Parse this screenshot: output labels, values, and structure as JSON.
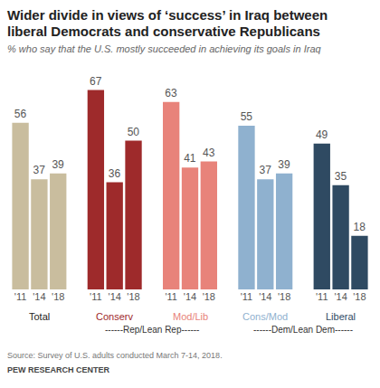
{
  "chart_data": {
    "type": "bar",
    "title": "Wider divide in views of ‘success’ in Iraq between liberal Democrats and conservative Republicans",
    "subtitle": "% who say that the U.S. mostly succeeded in achieving its goals in Iraq",
    "groups": [
      "Total",
      "Conserv",
      "Mod/Lib",
      "Cons/Mod",
      "Liberal"
    ],
    "categories": [
      "'11",
      "'14",
      "'18"
    ],
    "values": [
      [
        56,
        37,
        39
      ],
      [
        67,
        36,
        50
      ],
      [
        63,
        41,
        43
      ],
      [
        55,
        37,
        39
      ],
      [
        49,
        35,
        18
      ]
    ],
    "colors": [
      [
        "#c9bd9e",
        "#c9bd9e",
        "#c9bd9e"
      ],
      [
        "#9e2a2b",
        "#9e2a2b",
        "#9e2a2b"
      ],
      [
        "#e8837a",
        "#e8837a",
        "#e8837a"
      ],
      [
        "#8fb1cf",
        "#8fb1cf",
        "#8fb1cf"
      ],
      [
        "#2f4a62",
        "#2f4a62",
        "#2f4a62"
      ]
    ],
    "parties": [
      {
        "label": "------Rep/Lean Rep------",
        "groups": [
          "Conserv",
          "Mod/Lib"
        ]
      },
      {
        "label": "------Dem/Lean Dem------",
        "groups": [
          "Cons/Mod",
          "Liberal"
        ]
      }
    ],
    "data_labels": true,
    "tick_labels": "x",
    "source": "Source: Survey of U.S. adults conducted March 7-14, 2018.",
    "credit": "PEW RESEARCH CENTER"
  }
}
